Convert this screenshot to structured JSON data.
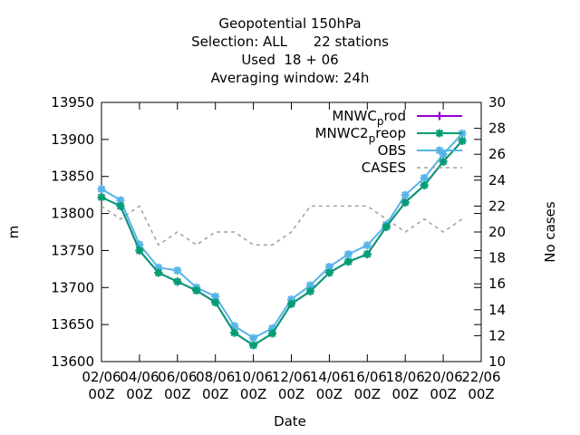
{
  "chart_data": {
    "type": "line",
    "title_lines": [
      "Geopotential 150hPa",
      "Selection: ALL      22 stations",
      "Used  18 + 06",
      "Averaging window: 24h"
    ],
    "xlabel": "Date",
    "ylabel": "m",
    "y2label": "No cases",
    "x_ticks": [
      "02/06\n00Z",
      "04/06\n00Z",
      "06/06\n00Z",
      "08/06\n00Z",
      "10/06\n00Z",
      "12/06\n00Z",
      "14/06\n00Z",
      "16/06\n00Z",
      "18/06\n00Z",
      "20/06\n00Z",
      "22/06\n00Z"
    ],
    "x_range_days": [
      2,
      22
    ],
    "ylim": [
      13600,
      13950
    ],
    "y_ticks": [
      13600,
      13650,
      13700,
      13750,
      13800,
      13850,
      13900,
      13950
    ],
    "y2lim": [
      10,
      30
    ],
    "y2_ticks": [
      10,
      12,
      14,
      16,
      18,
      20,
      22,
      24,
      26,
      28,
      30
    ],
    "grid": false,
    "legend_position": "top-right",
    "x": [
      2,
      3,
      4,
      5,
      6,
      7,
      8,
      9,
      10,
      11,
      12,
      13,
      14,
      15,
      16,
      17,
      18,
      19,
      20,
      21
    ],
    "series": [
      {
        "name": "MNWC_prod",
        "legend_main": "MNWC",
        "legend_sub": "p",
        "legend_tail": "rod",
        "axis": "y",
        "color": "#9400d3",
        "marker": "plus",
        "values": [
          13822,
          13810,
          13750,
          13720,
          13708,
          13696,
          13680,
          13639,
          13622,
          13638,
          13678,
          13695,
          13720,
          13735,
          13745,
          13782,
          13815,
          13838,
          13870,
          13898
        ]
      },
      {
        "name": "MNWC2_preop",
        "legend_main": "MNWC2",
        "legend_sub": "p",
        "legend_tail": "reop",
        "axis": "y",
        "color": "#009e73",
        "marker": "star",
        "values": [
          13822,
          13810,
          13750,
          13720,
          13708,
          13696,
          13680,
          13639,
          13622,
          13638,
          13678,
          13695,
          13720,
          13735,
          13745,
          13782,
          13815,
          13838,
          13870,
          13898
        ]
      },
      {
        "name": "OBS",
        "legend_main": "OBS",
        "legend_sub": "",
        "legend_tail": "",
        "axis": "y",
        "color": "#56b4e9",
        "marker": "star",
        "values": [
          13833,
          13818,
          13758,
          13727,
          13723,
          13700,
          13688,
          13648,
          13632,
          13645,
          13684,
          13703,
          13728,
          13745,
          13757,
          13785,
          13825,
          13848,
          13880,
          13908
        ]
      },
      {
        "name": "CASES",
        "legend_main": "CASES",
        "legend_sub": "",
        "legend_tail": "",
        "axis": "y2",
        "color": "#a0a0a0",
        "dashed": true,
        "values": [
          22,
          21,
          22,
          19,
          20,
          19,
          20,
          20,
          19,
          19,
          20,
          22,
          22,
          22,
          22,
          21,
          20,
          21,
          20,
          21
        ]
      }
    ]
  }
}
